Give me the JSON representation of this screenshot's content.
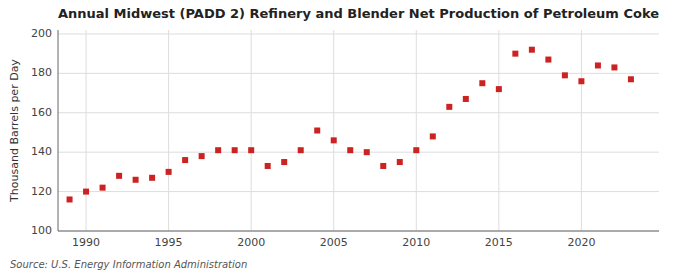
{
  "chart_data": {
    "type": "scatter",
    "title": "Annual Midwest (PADD 2) Refinery and Blender Net Production of Petroleum Coke",
    "y_label": "Thousand Barrels per Day",
    "annotations": [
      "Source: U.S. Energy Information Administration"
    ],
    "color": "#cc2222",
    "marker": "square",
    "grid": true,
    "xlim": [
      1988.3,
      2024.7
    ],
    "ylim": [
      100,
      202
    ],
    "xticks": [
      1990,
      1995,
      2000,
      2005,
      2010,
      2015,
      2020
    ],
    "yticks": [
      100,
      120,
      140,
      160,
      180,
      200
    ],
    "x": [
      1989,
      1990,
      1991,
      1992,
      1993,
      1994,
      1995,
      1996,
      1997,
      1998,
      1999,
      2000,
      2001,
      2002,
      2003,
      2004,
      2005,
      2006,
      2007,
      2008,
      2009,
      2010,
      2011,
      2012,
      2013,
      2014,
      2015,
      2016,
      2017,
      2018,
      2019,
      2020,
      2021,
      2022,
      2023
    ],
    "values": [
      116,
      120,
      122,
      128,
      126,
      127,
      130,
      136,
      138,
      141,
      141,
      141,
      133,
      135,
      141,
      151,
      146,
      141,
      140,
      133,
      135,
      141,
      148,
      163,
      167,
      175,
      172,
      190,
      192,
      187,
      179,
      176,
      184,
      183,
      177
    ]
  }
}
